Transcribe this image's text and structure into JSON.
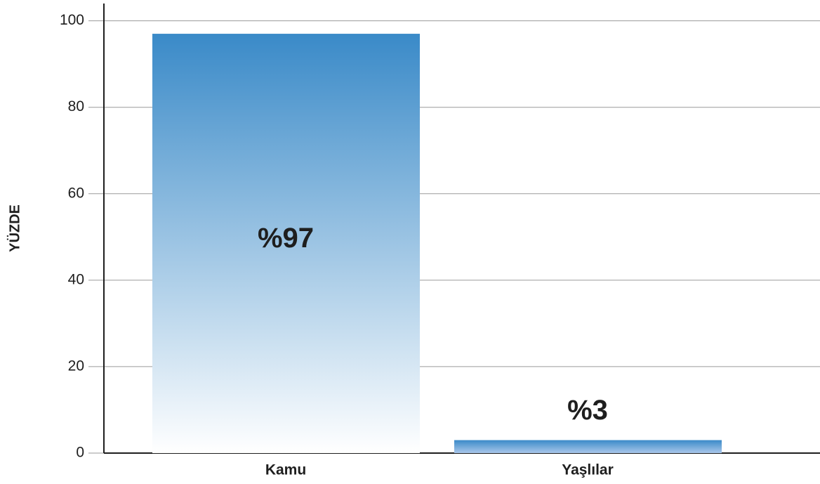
{
  "chart_data": {
    "type": "bar",
    "y_label": "YÜZDE",
    "categories": [
      "Kamu",
      "Yaşlılar"
    ],
    "values": [
      97,
      3
    ],
    "value_labels": [
      "%97",
      "%3"
    ],
    "color": "#3a8ac8",
    "ylim": [
      0,
      104
    ],
    "yticks": [
      0,
      20,
      40,
      60,
      80,
      100
    ],
    "grid": true
  }
}
